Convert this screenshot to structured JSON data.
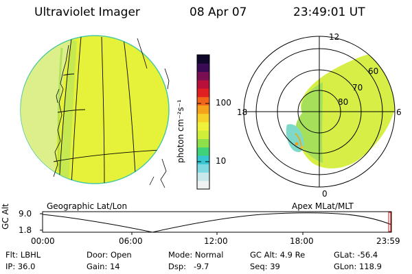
{
  "header": {
    "instrument": "Ultraviolet Imager",
    "date": "08 Apr 07",
    "time": "23:49:01 UT"
  },
  "geo_panel": {
    "caption": "Geographic Lat/Lon"
  },
  "colorbar": {
    "unit_label": "photon cm⁻²s⁻¹",
    "ticks": [
      "100",
      "10"
    ],
    "colors": [
      "#eef2f2",
      "#c9e8ec",
      "#7fd9e0",
      "#36c6d2",
      "#3fd27a",
      "#8ee04a",
      "#cfee3a",
      "#eef23a",
      "#f5d22a",
      "#f5a31c",
      "#f0651a",
      "#e02020",
      "#b8103a",
      "#7a0e52",
      "#3a0a55",
      "#10082a"
    ]
  },
  "polar_panel": {
    "caption": "Apex MLat/MLT",
    "mlt_labels": {
      "top": "12",
      "left": "18",
      "right": "6",
      "bottom": "0"
    },
    "lat_labels": [
      "60",
      "70",
      "80"
    ]
  },
  "timeline": {
    "axis_label": "GC Alt",
    "y_ticks": [
      "9.0",
      "1.8"
    ],
    "x_ticks": [
      "00:00",
      "06:00",
      "12:00",
      "18:00",
      "23:59"
    ]
  },
  "status": {
    "row1": [
      "Flt: LBHL",
      "Door: Open",
      "Mode: Normal",
      "GC Alt: 4.9 Re",
      "GLat: -56.4"
    ],
    "row2": [
      "IP: 36.0",
      "Gain: 14",
      "Dsp:   -9.7",
      "Seq: 39",
      "GLon: 118.9"
    ]
  },
  "colors": {
    "disk_fill": "#e8f23c",
    "disk_light": "#d9ef7c",
    "grid_line": "#000000",
    "current_marker": "#d01010"
  }
}
